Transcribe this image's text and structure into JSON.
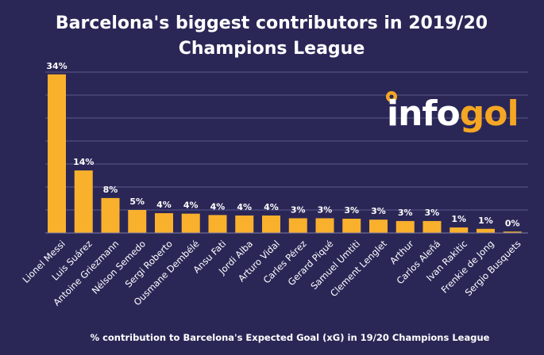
{
  "title_line1": "Barcelona's biggest contributors in 2019/20",
  "title_line2": "Champions League",
  "logo": {
    "text_white": "info",
    "text_orange": "gol",
    "color_white": "#ffffff",
    "color_orange": "#f5a623",
    "ball_icon": "soccer-ball-icon"
  },
  "colors": {
    "background": "#2a2757",
    "bar": "#f9b02c",
    "text": "#ffffff"
  },
  "chart_data": {
    "type": "bar",
    "categories": [
      "Lionel Messi",
      "Luis Suárez",
      "Antoine Griezmann",
      "Nélson Semedo",
      "Sergi Roberto",
      "Ousmane Dembélé",
      "Ansu Fati",
      "Jordi Alba",
      "Arturo Vidal",
      "Carles Pérez",
      "Gerard Piqué",
      "Samuel Umtiti",
      "Clement Lenglet",
      "Arthur",
      "Carlos Aleñá",
      "Ivan Rakitic",
      "Frenkie de Jong",
      "Sergio Busquets"
    ],
    "values": [
      34,
      14,
      8,
      5,
      4,
      4,
      4,
      4,
      4,
      3,
      3,
      3,
      3,
      3,
      3,
      1,
      1,
      0
    ],
    "labels": [
      "34%",
      "14%",
      "8%",
      "5%",
      "4%",
      "4%",
      "4%",
      "4%",
      "4%",
      "3%",
      "3%",
      "3%",
      "3%",
      "3%",
      "3%",
      "1%",
      "1%",
      "0%"
    ],
    "plot_values": [
      34.5,
      13.6,
      7.6,
      5.0,
      4.3,
      4.2,
      3.9,
      3.8,
      3.8,
      3.2,
      3.2,
      3.1,
      2.9,
      2.6,
      2.6,
      1.2,
      0.9,
      0.3
    ],
    "title": "Barcelona's biggest contributors in 2019/20 Champions League",
    "xlabel": "% contribution to Barcelona's Expected Goal (xG) in 19/20  Champions League",
    "ylabel": "",
    "ylim": [
      0,
      40
    ],
    "grid": true,
    "legend": "none"
  }
}
